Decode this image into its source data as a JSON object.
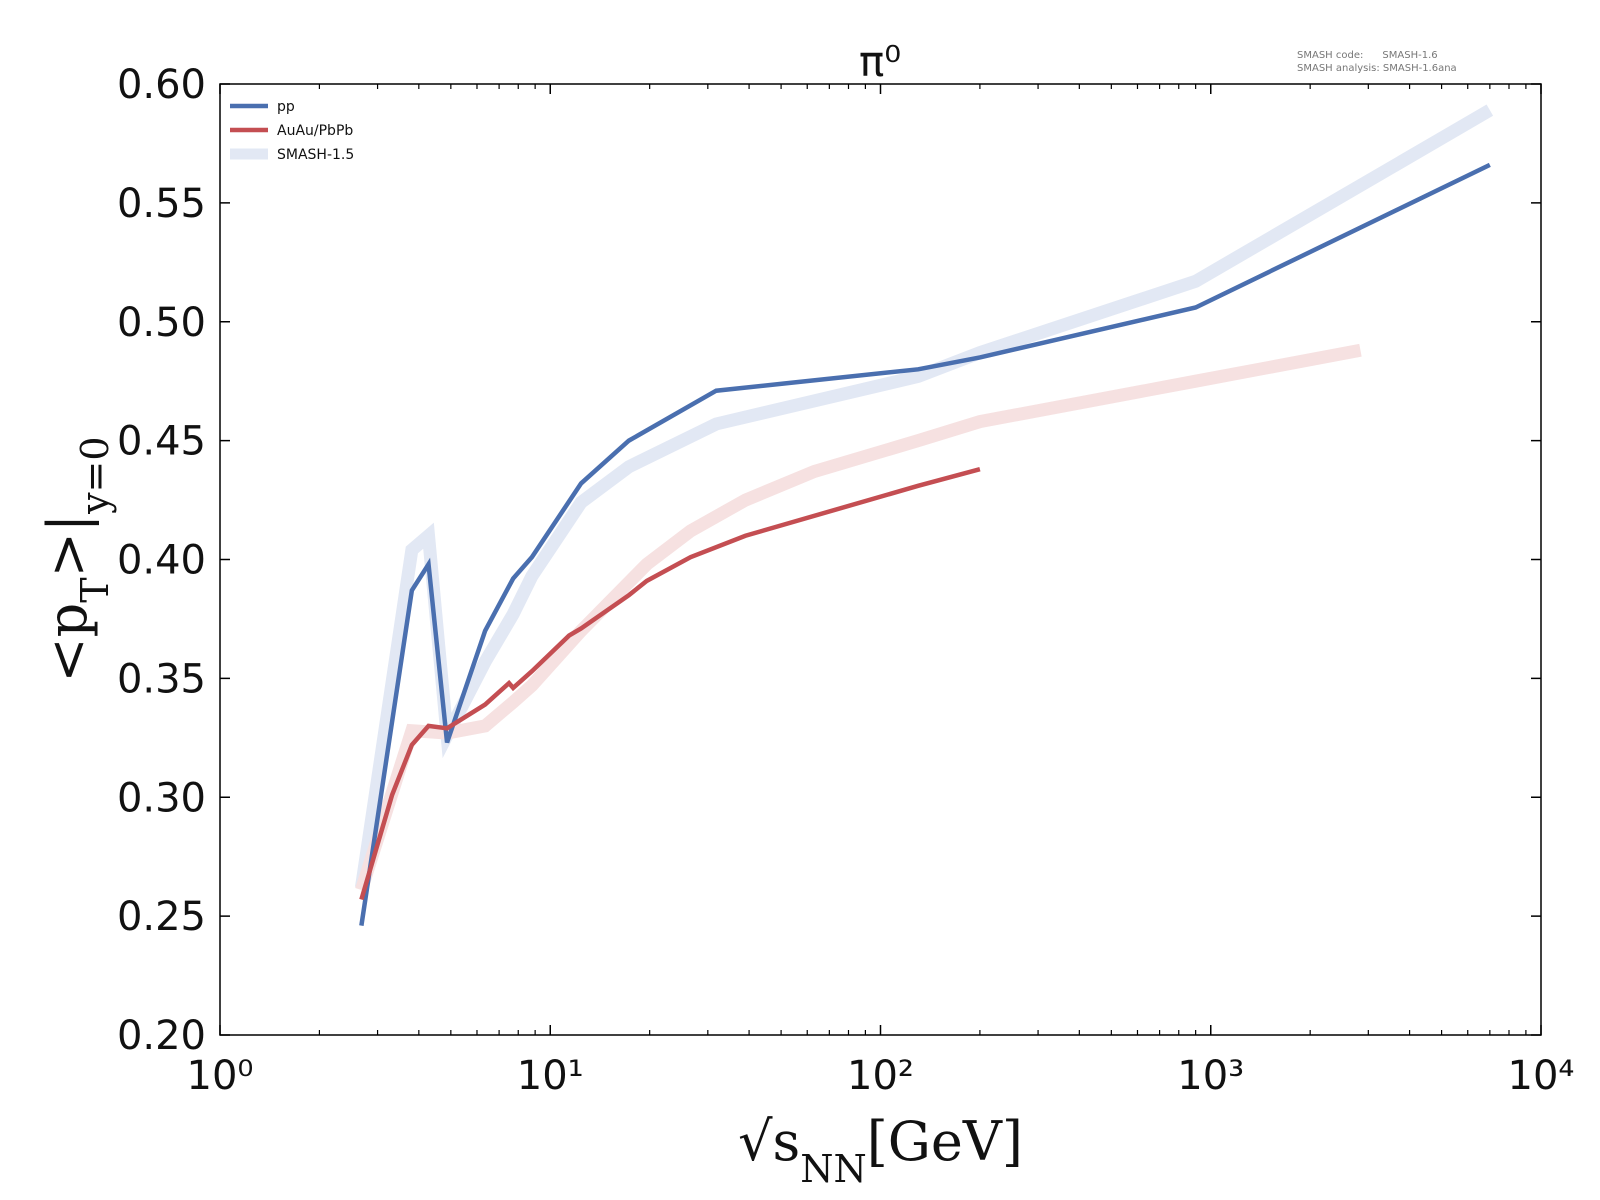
{
  "chart_data": {
    "type": "line",
    "title": "π⁰",
    "annotations": [
      "SMASH code:      SMASH-1.6",
      "SMASH analysis: SMASH-1.6ana"
    ],
    "xlabel_parts": [
      "√s",
      "NN",
      "[GeV]"
    ],
    "ylabel_parts": [
      "<p",
      "T",
      ">|",
      "y=0"
    ],
    "xscale": "log",
    "xlim": [
      1,
      10000
    ],
    "xticks": [
      {
        "value": 1,
        "label": "10⁰"
      },
      {
        "value": 10,
        "label": "10¹"
      },
      {
        "value": 100,
        "label": "10²"
      },
      {
        "value": 1000,
        "label": "10³"
      },
      {
        "value": 10000,
        "label": "10⁴"
      }
    ],
    "xminorticks": [
      2,
      3,
      4,
      5,
      6,
      7,
      8,
      9,
      20,
      30,
      40,
      50,
      60,
      70,
      80,
      90,
      200,
      300,
      400,
      500,
      600,
      700,
      800,
      900,
      2000,
      3000,
      4000,
      5000,
      6000,
      7000,
      8000,
      9000
    ],
    "ylim": [
      0.2,
      0.6
    ],
    "yticks": [
      {
        "value": 0.2,
        "label": "0.20"
      },
      0.25,
      {
        "value": 0.3,
        "label": "0.30"
      },
      0.35,
      {
        "value": 0.4,
        "label": "0.40"
      },
      0.45,
      {
        "value": 0.5,
        "label": "0.50"
      },
      0.55,
      {
        "value": 0.6,
        "label": "0.60"
      }
    ],
    "legend": "upper left",
    "series": [
      {
        "name": "pp",
        "color": "#4a6faf",
        "x": [
          2.68,
          3.81,
          4.28,
          4.87,
          6.35,
          7.72,
          8.8,
          12.4,
          17.3,
          31.8,
          130,
          200,
          900,
          7000
        ],
        "values": [
          0.246,
          0.387,
          0.398,
          0.323,
          0.37,
          0.392,
          0.401,
          0.432,
          0.45,
          0.471,
          0.48,
          0.485,
          0.506,
          0.566
        ]
      },
      {
        "name": "AuAu/PbPb",
        "color": "#c44e52",
        "x": [
          2.68,
          3.32,
          3.81,
          4.28,
          4.87,
          6.35,
          7.5,
          7.72,
          8.8,
          11.4,
          12.4,
          17.3,
          19.6,
          26.6,
          39,
          130,
          200
        ],
        "values": [
          0.257,
          0.301,
          0.322,
          0.33,
          0.329,
          0.339,
          0.348,
          0.346,
          0.353,
          0.368,
          0.371,
          0.385,
          0.391,
          0.401,
          0.41,
          0.431,
          0.438
        ]
      },
      {
        "name": "SMASH-1.5",
        "color": "#e2e8f4",
        "x": [
          2.68,
          3.81,
          4.28,
          4.87,
          6.35,
          7.72,
          8.8,
          12.4,
          17.3,
          31.8,
          130,
          200,
          900,
          7000
        ],
        "values": [
          0.262,
          0.404,
          0.41,
          0.326,
          0.357,
          0.377,
          0.393,
          0.424,
          0.439,
          0.457,
          0.477,
          0.487,
          0.517,
          0.589
        ]
      },
      {
        "color": "#f6e1e1",
        "x": [
          2.68,
          3.81,
          4.87,
          6.35,
          7.72,
          8.8,
          12.4,
          19.6,
          26.6,
          39,
          63,
          130,
          200,
          900,
          2840
        ],
        "values": [
          0.261,
          0.328,
          0.327,
          0.33,
          0.34,
          0.347,
          0.37,
          0.398,
          0.412,
          0.425,
          0.437,
          0.45,
          0.458,
          0.475,
          0.488
        ]
      }
    ]
  }
}
